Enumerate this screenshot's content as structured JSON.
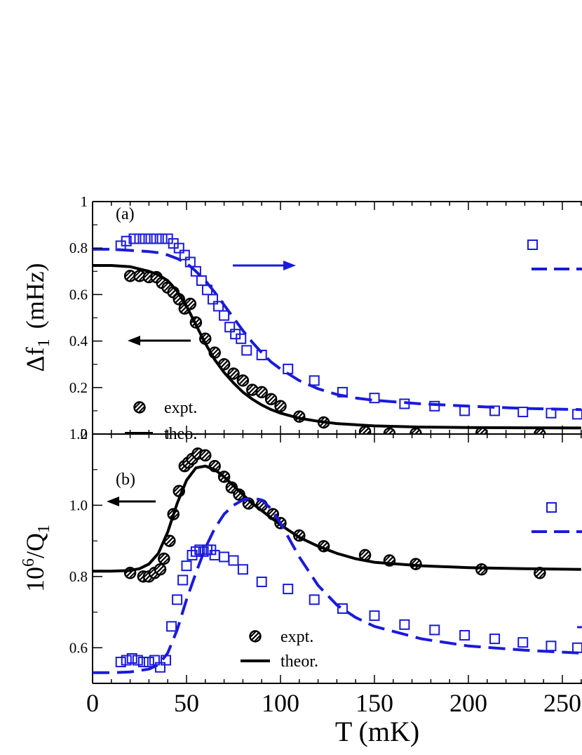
{
  "chart_data": [
    {
      "panel": "a",
      "type": "scatter",
      "panel_label": "(a)",
      "ylabel_main": "Δf",
      "ylabel_sub": "1",
      "ylabel_unit": "(mHz)",
      "xlim": [
        0,
        260
      ],
      "ylim": [
        0,
        1
      ],
      "yticks": [
        "0",
        "0.2",
        "0.4",
        "0.6",
        "0.8",
        "1"
      ],
      "series": [
        {
          "name": "expt.",
          "color": "#000000",
          "marker": "hatched-circle",
          "x": [
            20,
            25,
            30,
            34,
            37,
            40,
            43,
            46,
            49,
            52,
            55,
            60,
            65,
            70,
            75,
            80,
            85,
            90,
            95,
            100,
            110,
            123,
            145,
            158,
            172,
            207,
            238
          ],
          "y": [
            0.68,
            0.68,
            0.675,
            0.675,
            0.65,
            0.63,
            0.61,
            0.58,
            0.54,
            0.56,
            0.48,
            0.41,
            0.35,
            0.3,
            0.26,
            0.23,
            0.19,
            0.18,
            0.15,
            0.12,
            0.075,
            0.05,
            0.01,
            0.002,
            0.002,
            0.005,
            0.0
          ]
        },
        {
          "name": "theo.",
          "color": "#000000",
          "style": "solid",
          "x": [
            0,
            10,
            20,
            30,
            35,
            40,
            45,
            50,
            55,
            60,
            65,
            70,
            75,
            80,
            85,
            90,
            95,
            100,
            110,
            120,
            130,
            140,
            150,
            175,
            200,
            230,
            260
          ],
          "y": [
            0.725,
            0.725,
            0.72,
            0.7,
            0.685,
            0.66,
            0.615,
            0.55,
            0.47,
            0.39,
            0.32,
            0.265,
            0.22,
            0.18,
            0.15,
            0.125,
            0.105,
            0.09,
            0.068,
            0.055,
            0.045,
            0.04,
            0.035,
            0.03,
            0.028,
            0.027,
            0.026
          ]
        },
        {
          "color": "#1a1adb",
          "marker": "open-square",
          "x": [
            15,
            18,
            22,
            25,
            28,
            31,
            34,
            37,
            40,
            43,
            46,
            49,
            52,
            55,
            58,
            61,
            64,
            67,
            70,
            73,
            76,
            79,
            82,
            90,
            104,
            118,
            133,
            150,
            166,
            182,
            198,
            214,
            229,
            244,
            258
          ],
          "y": [
            0.81,
            0.83,
            0.84,
            0.84,
            0.84,
            0.84,
            0.84,
            0.84,
            0.84,
            0.82,
            0.8,
            0.77,
            0.74,
            0.7,
            0.66,
            0.62,
            0.58,
            0.55,
            0.51,
            0.46,
            0.43,
            0.41,
            0.36,
            0.34,
            0.28,
            0.23,
            0.18,
            0.155,
            0.13,
            0.12,
            0.1,
            0.1,
            0.095,
            0.09,
            0.085
          ]
        },
        {
          "color": "#1a1adb",
          "style": "dashed",
          "x": [
            0,
            10,
            20,
            30,
            35,
            40,
            45,
            50,
            55,
            60,
            65,
            70,
            75,
            80,
            85,
            90,
            95,
            100,
            110,
            120,
            130,
            140,
            150,
            175,
            200,
            230,
            260
          ],
          "y": [
            0.795,
            0.795,
            0.79,
            0.785,
            0.78,
            0.77,
            0.755,
            0.735,
            0.7,
            0.66,
            0.61,
            0.555,
            0.5,
            0.445,
            0.395,
            0.35,
            0.31,
            0.28,
            0.23,
            0.195,
            0.17,
            0.155,
            0.145,
            0.13,
            0.12,
            0.11,
            0.105
          ]
        }
      ]
    },
    {
      "panel": "b",
      "type": "scatter",
      "panel_label": "(b)",
      "ylabel_main": "10",
      "ylabel_sup": "6",
      "ylabel_rest": "/Q",
      "ylabel_sub": "1",
      "xlabel": "T (mK)",
      "xlim": [
        0,
        260
      ],
      "ylim": [
        0.5,
        1.2
      ],
      "yticks": [
        "0.6",
        "0.8",
        "1.0",
        "1.2"
      ],
      "xticks": [
        "0",
        "50",
        "100",
        "150",
        "200",
        "250"
      ],
      "series": [
        {
          "name": "expt.",
          "color": "#000000",
          "marker": "hatched-circle",
          "x": [
            20,
            27,
            30,
            33,
            36,
            38,
            41,
            43,
            46,
            49,
            51,
            53,
            56,
            60,
            65,
            70,
            74,
            78,
            83,
            90,
            96,
            100,
            110,
            123,
            145,
            158,
            172,
            207,
            238
          ],
          "y": [
            0.81,
            0.8,
            0.8,
            0.81,
            0.82,
            0.85,
            0.9,
            0.975,
            1.04,
            1.11,
            1.12,
            1.13,
            1.145,
            1.14,
            1.11,
            1.08,
            1.05,
            1.03,
            1.005,
            1.0,
            0.975,
            0.95,
            0.915,
            0.885,
            0.86,
            0.845,
            0.835,
            0.82,
            0.81
          ]
        },
        {
          "name": "theor.",
          "color": "#000000",
          "style": "solid",
          "x": [
            0,
            10,
            20,
            25,
            30,
            35,
            40,
            45,
            50,
            55,
            60,
            65,
            70,
            75,
            80,
            85,
            90,
            95,
            100,
            110,
            120,
            130,
            140,
            150,
            175,
            200,
            230,
            260
          ],
          "y": [
            0.815,
            0.815,
            0.817,
            0.822,
            0.835,
            0.865,
            0.925,
            1.005,
            1.07,
            1.105,
            1.11,
            1.1,
            1.08,
            1.055,
            1.03,
            1.005,
            0.985,
            0.965,
            0.945,
            0.91,
            0.885,
            0.865,
            0.85,
            0.84,
            0.83,
            0.825,
            0.822,
            0.82
          ]
        },
        {
          "color": "#1a1adb",
          "marker": "open-square",
          "x": [
            15,
            18,
            21,
            24,
            27,
            30,
            33,
            36,
            39,
            42,
            45,
            48,
            50,
            53,
            55,
            57,
            59,
            61,
            63,
            65,
            70,
            75,
            80,
            90,
            104,
            118,
            133,
            150,
            166,
            182,
            198,
            214,
            229,
            244,
            258
          ],
          "y": [
            0.56,
            0.565,
            0.57,
            0.565,
            0.56,
            0.56,
            0.565,
            0.545,
            0.565,
            0.66,
            0.735,
            0.79,
            0.83,
            0.86,
            0.87,
            0.875,
            0.87,
            0.875,
            0.875,
            0.86,
            0.855,
            0.845,
            0.82,
            0.785,
            0.765,
            0.735,
            0.71,
            0.69,
            0.665,
            0.65,
            0.635,
            0.625,
            0.615,
            0.605,
            0.6
          ]
        },
        {
          "color": "#1a1adb",
          "style": "dashed",
          "x": [
            0,
            10,
            20,
            30,
            35,
            40,
            45,
            50,
            55,
            60,
            65,
            70,
            75,
            80,
            85,
            90,
            95,
            100,
            110,
            120,
            130,
            140,
            150,
            175,
            200,
            230,
            260
          ],
          "y": [
            0.53,
            0.53,
            0.532,
            0.54,
            0.552,
            0.585,
            0.65,
            0.735,
            0.81,
            0.88,
            0.935,
            0.975,
            1.0,
            1.015,
            1.02,
            1.015,
            0.99,
            0.95,
            0.855,
            0.775,
            0.72,
            0.685,
            0.66,
            0.625,
            0.605,
            0.593,
            0.585
          ]
        }
      ]
    }
  ]
}
